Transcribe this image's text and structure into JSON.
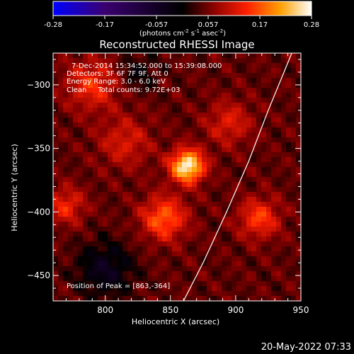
{
  "colorbar": {
    "ticks": [
      "-0.28",
      "-0.17",
      "-0.057",
      "0.057",
      "0.17",
      "0.28"
    ],
    "units_prefix": "(photons cm",
    "units_exp1": "-2",
    "units_mid": " s",
    "units_exp2": "-1",
    "units_mid2": " asec",
    "units_exp3": "-2",
    "units_suffix": ")",
    "colors": [
      "#0000ff",
      "#3a0070",
      "#000000",
      "#8a0000",
      "#ff2000",
      "#ffa000",
      "#ffffff"
    ]
  },
  "annotations": {
    "time_range": "7-Dec-2014 15:34:52.000 to 15:39:08.000",
    "detectors": "Detectors: 3F 6F 7F 9F, Att 0",
    "energy": "Energy Range: 3.0 - 6.0 keV",
    "clean": "Clean     Total counts: 9.72E+03",
    "peak": "Position of Peak = [863,-364]"
  },
  "footer": {
    "timestamp": "20-May-2022 07:33"
  },
  "chart_data": {
    "type": "heatmap",
    "title": "Reconstructed RHESSI Image",
    "xlabel": "Heliocentric X (arcsec)",
    "ylabel": "Heliocentric Y (arcsec)",
    "xlim": [
      760,
      950
    ],
    "ylim": [
      -470,
      -275
    ],
    "xticks": [
      800,
      850,
      900,
      950
    ],
    "yticks": [
      -300,
      -350,
      -400,
      -450
    ],
    "peak": {
      "x": 863,
      "y": -364
    },
    "limb_curve": [
      [
        860,
        -470
      ],
      [
        875,
        -440
      ],
      [
        893,
        -400
      ],
      [
        910,
        -360
      ],
      [
        925,
        -320
      ],
      [
        937,
        -290
      ],
      [
        943,
        -275
      ]
    ],
    "sources": [
      {
        "x": 863,
        "y": -364,
        "amp": 1.0,
        "sigma": 9
      },
      {
        "x": 845,
        "y": -405,
        "amp": 0.55,
        "sigma": 12
      },
      {
        "x": 918,
        "y": -405,
        "amp": 0.45,
        "sigma": 11
      },
      {
        "x": 790,
        "y": -300,
        "amp": 0.4,
        "sigma": 14
      },
      {
        "x": 770,
        "y": -395,
        "amp": 0.38,
        "sigma": 10
      },
      {
        "x": 815,
        "y": -345,
        "amp": 0.3,
        "sigma": 14
      },
      {
        "x": 895,
        "y": -330,
        "amp": 0.32,
        "sigma": 12
      },
      {
        "x": 800,
        "y": -445,
        "amp": -0.35,
        "sigma": 15
      },
      {
        "x": 825,
        "y": -290,
        "amp": -0.2,
        "sigma": 10
      }
    ]
  }
}
